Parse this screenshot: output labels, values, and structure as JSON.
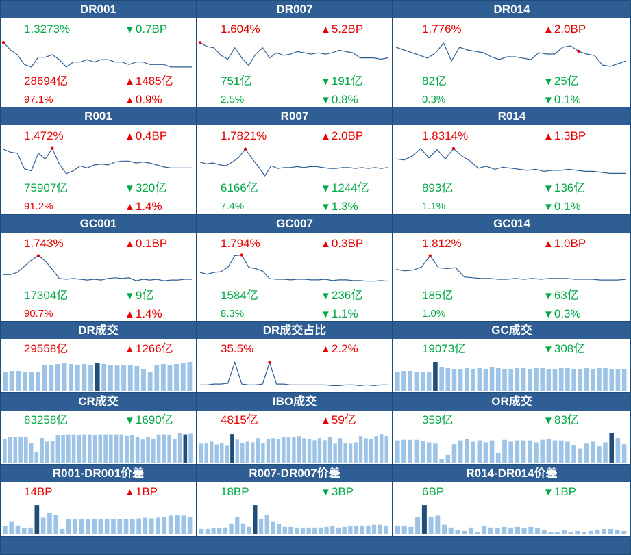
{
  "colors": {
    "header_bg": "#2e5e94",
    "red": "#e60000",
    "green": "#00a846",
    "line": "#2e5e94",
    "bar": "#9dc3e6",
    "bar_highlight": "#1f4e79"
  },
  "chart_data": [
    {
      "type": "line",
      "title": "DR001",
      "values": [
        1.36,
        1.33,
        1.31,
        1.27,
        1.26,
        1.3,
        1.3,
        1.31,
        1.29,
        1.26,
        1.28,
        1.28,
        1.29,
        1.28,
        1.29,
        1.29,
        1.28,
        1.28,
        1.27,
        1.28,
        1.28,
        1.27,
        1.27,
        1.27,
        1.26,
        1.26,
        1.26,
        1.26
      ],
      "highlight_index": 0,
      "ylim": [
        1.24,
        1.38
      ],
      "rows": [
        [
          {
            "text": "1.3273%",
            "color": "green"
          },
          {
            "dir": "down",
            "text": "0.7BP",
            "color": "green"
          }
        ],
        [
          {
            "text": "28694亿",
            "color": "red"
          },
          {
            "dir": "up",
            "text": "1485亿",
            "color": "red"
          }
        ],
        [
          {
            "text": "97.1%",
            "color": "red"
          },
          {
            "dir": "up",
            "text": "0.9%",
            "color": "red"
          }
        ]
      ]
    },
    {
      "type": "line",
      "title": "DR007",
      "values": [
        1.78,
        1.75,
        1.74,
        1.68,
        1.65,
        1.74,
        1.66,
        1.6,
        1.69,
        1.74,
        1.66,
        1.7,
        1.68,
        1.69,
        1.71,
        1.7,
        1.69,
        1.7,
        1.69,
        1.7,
        1.72,
        1.71,
        1.7,
        1.66,
        1.66,
        1.66,
        1.65,
        1.66
      ],
      "highlight_index": 0,
      "ylim": [
        1.55,
        1.82
      ],
      "rows": [
        [
          {
            "text": "1.604%",
            "color": "red"
          },
          {
            "dir": "up",
            "text": "5.2BP",
            "color": "red"
          }
        ],
        [
          {
            "text": "751亿",
            "color": "green"
          },
          {
            "dir": "down",
            "text": "191亿",
            "color": "green"
          }
        ],
        [
          {
            "text": "2.5%",
            "color": "green"
          },
          {
            "dir": "down",
            "text": "0.8%",
            "color": "green"
          }
        ]
      ]
    },
    {
      "type": "line",
      "title": "DR014",
      "values": [
        1.88,
        1.86,
        1.84,
        1.82,
        1.8,
        1.84,
        1.91,
        1.78,
        1.88,
        1.86,
        1.85,
        1.84,
        1.81,
        1.79,
        1.81,
        1.81,
        1.8,
        1.79,
        1.84,
        1.83,
        1.83,
        1.88,
        1.89,
        1.85,
        1.83,
        1.82,
        1.75,
        1.74,
        1.76,
        1.78
      ],
      "highlight_index": 23,
      "ylim": [
        1.7,
        1.95
      ],
      "rows": [
        [
          {
            "text": "1.776%",
            "color": "red"
          },
          {
            "dir": "up",
            "text": "2.0BP",
            "color": "red"
          }
        ],
        [
          {
            "text": "82亿",
            "color": "green"
          },
          {
            "dir": "down",
            "text": "25亿",
            "color": "green"
          }
        ],
        [
          {
            "text": "0.3%",
            "color": "green"
          },
          {
            "dir": "down",
            "text": "0.1%",
            "color": "green"
          }
        ]
      ]
    },
    {
      "type": "line",
      "title": "R001",
      "values": [
        1.55,
        1.52,
        1.51,
        1.35,
        1.33,
        1.51,
        1.45,
        1.56,
        1.4,
        1.3,
        1.33,
        1.38,
        1.36,
        1.39,
        1.4,
        1.39,
        1.42,
        1.43,
        1.43,
        1.41,
        1.42,
        1.41,
        1.39,
        1.37,
        1.36,
        1.36,
        1.36,
        1.36
      ],
      "highlight_index": 7,
      "ylim": [
        1.25,
        1.6
      ],
      "rows": [
        [
          {
            "text": "1.472%",
            "color": "red"
          },
          {
            "dir": "up",
            "text": "0.4BP",
            "color": "red"
          }
        ],
        [
          {
            "text": "75907亿",
            "color": "green"
          },
          {
            "dir": "down",
            "text": "320亿",
            "color": "green"
          }
        ],
        [
          {
            "text": "91.2%",
            "color": "red"
          },
          {
            "dir": "up",
            "text": "1.4%",
            "color": "red"
          }
        ]
      ]
    },
    {
      "type": "line",
      "title": "R007",
      "values": [
        1.73,
        1.71,
        1.72,
        1.7,
        1.69,
        1.73,
        1.78,
        1.87,
        1.77,
        1.68,
        1.58,
        1.69,
        1.66,
        1.67,
        1.67,
        1.68,
        1.67,
        1.68,
        1.68,
        1.67,
        1.66,
        1.66,
        1.67,
        1.67,
        1.66,
        1.67,
        1.66,
        1.67,
        1.66,
        1.67
      ],
      "highlight_index": 7,
      "ylim": [
        1.55,
        1.92
      ],
      "rows": [
        [
          {
            "text": "1.7821%",
            "color": "red"
          },
          {
            "dir": "up",
            "text": "2.0BP",
            "color": "red"
          }
        ],
        [
          {
            "text": "6166亿",
            "color": "green"
          },
          {
            "dir": "down",
            "text": "1244亿",
            "color": "green"
          }
        ],
        [
          {
            "text": "7.4%",
            "color": "green"
          },
          {
            "dir": "down",
            "text": "1.3%",
            "color": "green"
          }
        ]
      ]
    },
    {
      "type": "line",
      "title": "R014",
      "values": [
        1.89,
        1.88,
        1.92,
        1.99,
        1.9,
        1.98,
        1.89,
        1.99,
        1.92,
        1.87,
        1.8,
        1.82,
        1.79,
        1.81,
        1.8,
        1.79,
        1.78,
        1.79,
        1.77,
        1.78,
        1.78,
        1.79,
        1.78,
        1.77,
        1.77,
        1.76,
        1.75,
        1.75,
        1.75
      ],
      "highlight_index": 7,
      "ylim": [
        1.7,
        2.03
      ],
      "rows": [
        [
          {
            "text": "1.8314%",
            "color": "red"
          },
          {
            "dir": "up",
            "text": "1.3BP",
            "color": "red"
          }
        ],
        [
          {
            "text": "893亿",
            "color": "green"
          },
          {
            "dir": "down",
            "text": "136亿",
            "color": "green"
          }
        ],
        [
          {
            "text": "1.1%",
            "color": "green"
          },
          {
            "dir": "down",
            "text": "0.1%",
            "color": "green"
          }
        ]
      ]
    },
    {
      "type": "line",
      "title": "GC001",
      "values": [
        1.45,
        1.45,
        1.48,
        1.56,
        1.64,
        1.7,
        1.63,
        1.52,
        1.4,
        1.39,
        1.4,
        1.39,
        1.38,
        1.39,
        1.38,
        1.4,
        1.41,
        1.4,
        1.41,
        1.37,
        1.39,
        1.38,
        1.39,
        1.37,
        1.38,
        1.38,
        1.39,
        1.39
      ],
      "highlight_index": 5,
      "ylim": [
        1.3,
        1.75
      ],
      "rows": [
        [
          {
            "text": "1.743%",
            "color": "red"
          },
          {
            "dir": "up",
            "text": "0.1BP",
            "color": "red"
          }
        ],
        [
          {
            "text": "17304亿",
            "color": "green"
          },
          {
            "dir": "down",
            "text": "9亿",
            "color": "green"
          }
        ],
        [
          {
            "text": "90.7%",
            "color": "red"
          },
          {
            "dir": "up",
            "text": "1.4%",
            "color": "red"
          }
        ]
      ]
    },
    {
      "type": "line",
      "title": "GC007",
      "values": [
        1.52,
        1.49,
        1.52,
        1.53,
        1.6,
        1.79,
        1.8,
        1.6,
        1.58,
        1.54,
        1.42,
        1.41,
        1.41,
        1.4,
        1.41,
        1.41,
        1.4,
        1.4,
        1.41,
        1.39,
        1.4,
        1.4,
        1.39,
        1.39,
        1.38,
        1.38,
        1.39,
        1.38
      ],
      "highlight_index": 6,
      "ylim": [
        1.3,
        1.85
      ],
      "rows": [
        [
          {
            "text": "1.794%",
            "color": "red"
          },
          {
            "dir": "up",
            "text": "0.3BP",
            "color": "red"
          }
        ],
        [
          {
            "text": "1584亿",
            "color": "green"
          },
          {
            "dir": "down",
            "text": "236亿",
            "color": "green"
          }
        ],
        [
          {
            "text": "8.3%",
            "color": "green"
          },
          {
            "dir": "down",
            "text": "1.1%",
            "color": "green"
          }
        ]
      ]
    },
    {
      "type": "line",
      "title": "GC014",
      "values": [
        1.62,
        1.6,
        1.61,
        1.65,
        1.8,
        1.64,
        1.63,
        1.64,
        1.52,
        1.51,
        1.5,
        1.5,
        1.49,
        1.49,
        1.5,
        1.49,
        1.5,
        1.49,
        1.5,
        1.5,
        1.5,
        1.49,
        1.49,
        1.49,
        1.48,
        1.48,
        1.48,
        1.49
      ],
      "highlight_index": 4,
      "ylim": [
        1.4,
        1.85
      ],
      "rows": [
        [
          {
            "text": "1.812%",
            "color": "red"
          },
          {
            "dir": "up",
            "text": "1.0BP",
            "color": "red"
          }
        ],
        [
          {
            "text": "185亿",
            "color": "green"
          },
          {
            "dir": "down",
            "text": "63亿",
            "color": "green"
          }
        ],
        [
          {
            "text": "1.0%",
            "color": "green"
          },
          {
            "dir": "down",
            "text": "0.3%",
            "color": "green"
          }
        ]
      ]
    },
    {
      "type": "bar",
      "title": "DR成交",
      "values": [
        26,
        27,
        27,
        26,
        26,
        25,
        35,
        36,
        37,
        38,
        37,
        36,
        37,
        36,
        38,
        37,
        36,
        36,
        35,
        36,
        34,
        30,
        25,
        36,
        37,
        36,
        37,
        39,
        40
      ],
      "highlight_index": 14,
      "ylim": [
        0,
        45
      ],
      "rows": [
        [
          {
            "text": "29558亿",
            "color": "red"
          },
          {
            "dir": "up",
            "text": "1266亿",
            "color": "red"
          }
        ]
      ]
    },
    {
      "type": "line",
      "title": "DR成交占比",
      "values": [
        96,
        96,
        97,
        97,
        98,
        125,
        97,
        96,
        96,
        97,
        125,
        97,
        97,
        96,
        96,
        96,
        96,
        96,
        96,
        95,
        95,
        96,
        96,
        95,
        96,
        95,
        96,
        96
      ],
      "highlight_index": 10,
      "ylim": [
        90,
        130
      ],
      "rows": [
        [
          {
            "text": "35.5%",
            "color": "red"
          },
          {
            "dir": "up",
            "text": "2.2%",
            "color": "red"
          }
        ]
      ]
    },
    {
      "type": "bar",
      "title": "GC成交",
      "values": [
        26,
        27,
        27,
        26,
        26,
        25,
        40,
        32,
        31,
        30,
        30,
        31,
        30,
        31,
        30,
        32,
        31,
        30,
        30,
        31,
        31,
        30,
        31,
        31,
        30,
        30,
        31,
        31,
        30,
        30,
        31,
        30,
        31,
        31,
        30,
        30,
        30
      ],
      "highlight_index": 6,
      "ylim": [
        0,
        45
      ],
      "rows": [
        [
          {
            "text": "19073亿",
            "color": "green"
          },
          {
            "dir": "down",
            "text": "308亿",
            "color": "green"
          }
        ]
      ]
    },
    {
      "type": "bar",
      "title": "CR成交",
      "values": [
        30,
        32,
        32,
        33,
        32,
        24,
        12,
        31,
        26,
        27,
        35,
        35,
        36,
        36,
        35,
        36,
        36,
        35,
        36,
        36,
        36,
        36,
        36,
        34,
        35,
        33,
        29,
        32,
        30,
        36,
        36,
        35,
        30,
        38,
        36,
        37
      ],
      "highlight_index": 34,
      "ylim": [
        0,
        42
      ],
      "rows": [
        [
          {
            "text": "83258亿",
            "color": "green"
          },
          {
            "dir": "down",
            "text": "1690亿",
            "color": "green"
          }
        ]
      ]
    },
    {
      "type": "bar",
      "title": "IBO成交",
      "values": [
        25,
        26,
        28,
        24,
        26,
        23,
        39,
        31,
        26,
        28,
        27,
        33,
        26,
        32,
        33,
        32,
        35,
        34,
        35,
        36,
        33,
        32,
        30,
        33,
        30,
        35,
        25,
        33,
        26,
        25,
        27,
        36,
        33,
        32,
        36,
        39,
        36
      ],
      "highlight_index": 6,
      "ylim": [
        0,
        45
      ],
      "rows": [
        [
          {
            "text": "4815亿",
            "color": "red"
          },
          {
            "dir": "up",
            "text": "59亿",
            "color": "red"
          }
        ]
      ]
    },
    {
      "type": "bar",
      "title": "OR成交",
      "values": [
        33,
        34,
        34,
        34,
        32,
        30,
        28,
        4,
        10,
        27,
        33,
        35,
        31,
        33,
        30,
        33,
        13,
        34,
        31,
        33,
        33,
        33,
        30,
        34,
        36,
        33,
        33,
        31,
        26,
        20,
        28,
        31,
        25,
        30,
        45,
        37,
        27
      ],
      "highlight_index": 34,
      "ylim": [
        0,
        50
      ],
      "rows": [
        [
          {
            "text": "359亿",
            "color": "green"
          },
          {
            "dir": "down",
            "text": "83亿",
            "color": "green"
          }
        ]
      ]
    },
    {
      "type": "bar",
      "title": "R001-DR001价差",
      "values": [
        10,
        16,
        11,
        7,
        8,
        40,
        22,
        29,
        26,
        6,
        20,
        20,
        20,
        20,
        20,
        20,
        20,
        20,
        20,
        20,
        20,
        21,
        22,
        21,
        22,
        23,
        25,
        26,
        25,
        23
      ],
      "highlight_index": 5,
      "ylim": [
        0,
        45
      ],
      "rows": [
        [
          {
            "text": "14BP",
            "color": "red"
          },
          {
            "dir": "up",
            "text": "1BP",
            "color": "red"
          }
        ]
      ]
    },
    {
      "type": "bar",
      "title": "R007-DR007价差",
      "values": [
        6,
        6,
        7,
        7,
        8,
        14,
        23,
        14,
        9,
        40,
        20,
        26,
        16,
        13,
        9,
        9,
        8,
        7,
        8,
        8,
        8,
        9,
        10,
        8,
        9,
        10,
        11,
        11,
        11,
        12,
        12,
        11
      ],
      "highlight_index": 9,
      "ylim": [
        0,
        45
      ],
      "rows": [
        [
          {
            "text": "18BP",
            "color": "green"
          },
          {
            "dir": "down",
            "text": "3BP",
            "color": "green"
          }
        ]
      ]
    },
    {
      "type": "bar",
      "title": "R014-DR014价差",
      "values": [
        11,
        11,
        9,
        23,
        40,
        23,
        25,
        12,
        8,
        5,
        3,
        8,
        2,
        10,
        8,
        7,
        9,
        8,
        9,
        7,
        9,
        7,
        5,
        2,
        2,
        4,
        2,
        3,
        2,
        3,
        5,
        6,
        6,
        5,
        3
      ],
      "highlight_index": 4,
      "ylim": [
        0,
        45
      ],
      "rows": [
        [
          {
            "text": "6BP",
            "color": "green"
          },
          {
            "dir": "down",
            "text": "1BP",
            "color": "green"
          }
        ]
      ]
    }
  ]
}
